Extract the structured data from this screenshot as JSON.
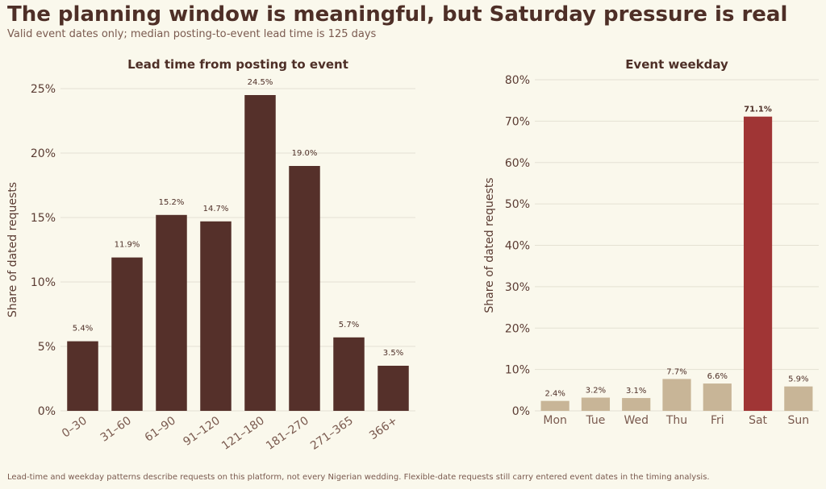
{
  "header": {
    "title": "The planning window is meaningful, but Saturday pressure is real",
    "subtitle": "Valid event dates only; median posting-to-event lead time is 125 days"
  },
  "footnote": "Lead-time and weekday patterns describe requests on this platform, not every Nigerian wedding. Flexible-date requests still carry entered event dates in the timing analysis.",
  "colors": {
    "lead_bar": "#55302a",
    "weekday_bar": "#c8b597",
    "weekday_highlight": "#a03535"
  },
  "chart_data": [
    {
      "type": "bar",
      "title": "Lead time from posting to event",
      "xlabel": "",
      "ylabel": "Share of dated requests",
      "categories": [
        "0–30",
        "31–60",
        "61–90",
        "91–120",
        "121–180",
        "181–270",
        "271–365",
        "366+"
      ],
      "values": [
        5.4,
        11.9,
        15.2,
        14.7,
        24.5,
        19.0,
        5.7,
        3.5
      ],
      "labels": [
        "5.4%",
        "11.9%",
        "15.2%",
        "14.7%",
        "24.5%",
        "19.0%",
        "5.7%",
        "3.5%"
      ],
      "ylim": [
        0,
        25
      ],
      "yticks": [
        0,
        5,
        10,
        15,
        20,
        25
      ],
      "ytick_labels": [
        "0%",
        "5%",
        "10%",
        "15%",
        "20%",
        "25%"
      ],
      "grid": true,
      "x_tick_rotation": "rotated"
    },
    {
      "type": "bar",
      "title": "Event weekday",
      "xlabel": "",
      "ylabel": "Share of dated requests",
      "categories": [
        "Mon",
        "Tue",
        "Wed",
        "Thu",
        "Fri",
        "Sat",
        "Sun"
      ],
      "values": [
        2.4,
        3.2,
        3.1,
        7.7,
        6.6,
        71.1,
        5.9
      ],
      "labels": [
        "2.4%",
        "3.2%",
        "3.1%",
        "7.7%",
        "6.6%",
        "71.1%",
        "5.9%"
      ],
      "highlight": "Sat",
      "ylim": [
        0,
        80
      ],
      "yticks": [
        0,
        10,
        20,
        30,
        40,
        50,
        60,
        70,
        80
      ],
      "ytick_labels": [
        "0%",
        "10%",
        "20%",
        "30%",
        "40%",
        "50%",
        "60%",
        "70%",
        "80%"
      ],
      "grid": true
    }
  ]
}
